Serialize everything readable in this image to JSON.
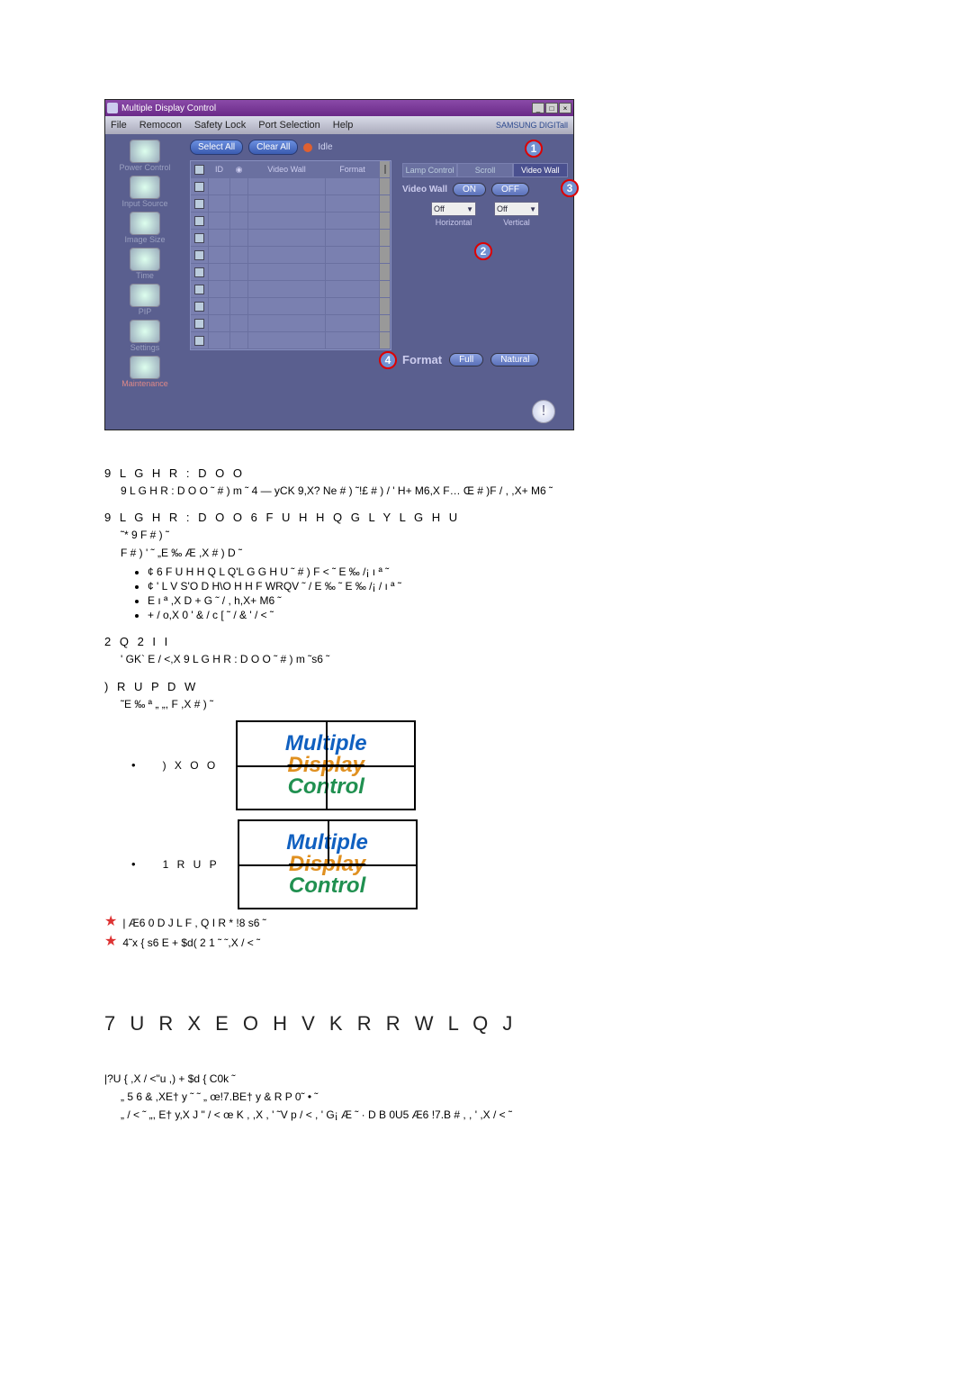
{
  "window": {
    "title": "Multiple Display Control",
    "menu": {
      "file": "File",
      "remocon": "Remocon",
      "safety": "Safety Lock",
      "port": "Port Selection",
      "help": "Help"
    },
    "brand": "SAMSUNG DIGITall",
    "buttons": {
      "select_all": "Select All",
      "clear_all": "Clear All",
      "idle": "Idle"
    },
    "grid_headers": {
      "id": "ID",
      "video_wall": "Video Wall",
      "format": "Format"
    },
    "row_count": 10,
    "right": {
      "tabs": {
        "lamp": "Lamp Control",
        "scroll": "Scroll",
        "video_wall": "Video Wall"
      },
      "vw_label": "Video Wall",
      "on": "ON",
      "off": "OFF",
      "h_sel": "Off",
      "v_sel": "Off",
      "h_lbl": "Horizontal",
      "v_lbl": "Vertical",
      "format_label": "Format",
      "full": "Full",
      "natural": "Natural"
    },
    "sidebar": {
      "items": [
        {
          "label": "Power Control"
        },
        {
          "label": "Input Source"
        },
        {
          "label": "Image Size"
        },
        {
          "label": "Time"
        },
        {
          "label": "PIP"
        },
        {
          "label": "Settings"
        },
        {
          "label": "Maintenance"
        }
      ]
    }
  },
  "doc": {
    "s1_h": "9 L G H R   : D O O",
    "s1_b": "9 L G H R   : D O O ˜ # ) m ˜    4  — yCK 9,X? Ne # ) ˜!£  # )   /    ' H+ M6,X  F…   Œ    # )F   / ,   ,X+ M6 ˜",
    "s2_h": "9 L G H R  : D O O    6 F U H H Q   G L Y L G H U",
    "s2_b1": "˜* 9   F # ) ˜",
    "s2_b2": "F # ) ' ˜ „E  ‰ Æ     ,X # ) D ˜",
    "s2_li1": "¢  6 F U H H Q L Q'L G G H U ˜ # )   F < ˜  E  ‰  /¡ ı ª ˜",
    "s2_li2": "¢  ' L V S'O D H\\O H H F WRQV ˜ / E  ‰ ˜   E  ‰  /¡ / ı ª ˜",
    "s2_li3": "E ı ª  ,X D + G ˜ / ,  h,X+ M6 ˜",
    "s2_li4": "+    / o,X   0 ' &  / c         [           ˜  / & '   / < ˜",
    "s3_h": "2 Q     2 I I",
    "s3_b": "'   GK`  E   / <,X   9 L G H R   : D O O ˜ # ) m ˜s6 ˜",
    "s4_h": ") R U P D W",
    "s4_b": "˜E  ‰   ª „ „,    F  ,X # ) ˜",
    "full_lbl": ") X O O",
    "norm_lbl": "1 R U P",
    "star1": "| Æ6    0 D J L F , Q I R    * !8 s6 ˜",
    "star2": "4˜x {  s6  E   + $d(      2 1 ˜  ˜,X  / < ˜",
    "trouble": "7 U R X E O H V K R R W L Q J",
    "t1": "|?U {  ,X  / <\"u  ,)   + $d {   C0k  ˜",
    "t2": "„  5 6     &  ,XE† y ˜  ˜   „  œ!7.BE† y    & R P   0˜ •  ˜",
    "t3": "„    / <  ˜  „, E† y,X J \" / <  œ K ,   ,X   , '  ˜V p  / <  , '   G¡ Æ ˜   · D B  0U5 Æ6 !7.B  #  ,     , '  ,X   / < ˜"
  },
  "mdc": {
    "m": "Multiple",
    "d": "Display",
    "c": "Control"
  }
}
